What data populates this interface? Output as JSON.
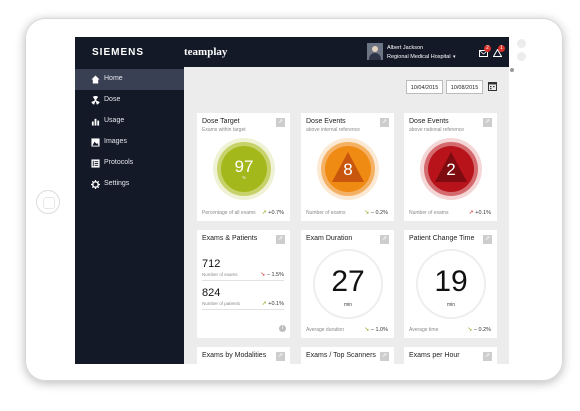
{
  "topbar": {
    "brand": "SIEMENS",
    "app_name": "teamplay",
    "user_name": "Albert Jackson",
    "hospital": "Regional Medical Hospital",
    "hospital_caret": "▾",
    "messages_badge": "2",
    "alerts_badge": "1"
  },
  "sidebar": {
    "items": [
      {
        "label": "Home",
        "icon": "home-icon"
      },
      {
        "label": "Dose",
        "icon": "radiation-icon"
      },
      {
        "label": "Usage",
        "icon": "bar-chart-icon"
      },
      {
        "label": "Images",
        "icon": "image-icon"
      },
      {
        "label": "Protocols",
        "icon": "list-icon"
      },
      {
        "label": "Settings",
        "icon": "gear-icon"
      }
    ],
    "active": "Home"
  },
  "filters": {
    "date_from": "10/04/2015",
    "date_to": "10/08/2015"
  },
  "colors": {
    "nav_bg": "#141928",
    "nav_active": "#3a4053",
    "dose_target_green": "#a3b81a",
    "dose_events_orange": "#ef8a12",
    "dose_events_red": "#b8131a",
    "trend_up_green": "#8aaa1c",
    "trend_down_red": "#d2332b"
  },
  "cards": {
    "dose_target": {
      "title": "Dose Target",
      "subtitle": "Exams within target",
      "value": "97",
      "unit": "%",
      "footer": "Percentage of all exams",
      "trend": "+0.7%"
    },
    "dose_events_internal": {
      "title": "Dose Events",
      "subtitle": "above internal reference",
      "value": "8",
      "footer": "Number of exams",
      "trend": "– 0.2%"
    },
    "dose_events_national": {
      "title": "Dose Events",
      "subtitle": "above national reference",
      "value": "2",
      "footer": "Number of exams",
      "trend": "+0.1%"
    },
    "exams_patients": {
      "title": "Exams & Patients",
      "exams_value": "712",
      "exams_label": "Number of exams",
      "exams_trend": "– 1.5%",
      "patients_value": "824",
      "patients_label": "Number of patients",
      "patients_trend": "+0.1%"
    },
    "exam_duration": {
      "title": "Exam Duration",
      "value": "27",
      "unit": "min",
      "footer": "Average duration",
      "trend": "– 1.0%"
    },
    "patient_change_time": {
      "title": "Patient Change Time",
      "value": "19",
      "unit": "min",
      "footer": "Average time",
      "trend": "– 0.2%"
    },
    "row3_titles": [
      "Exams by Modalities",
      "Exams / Top Scanners",
      "Exams per Hour"
    ]
  }
}
